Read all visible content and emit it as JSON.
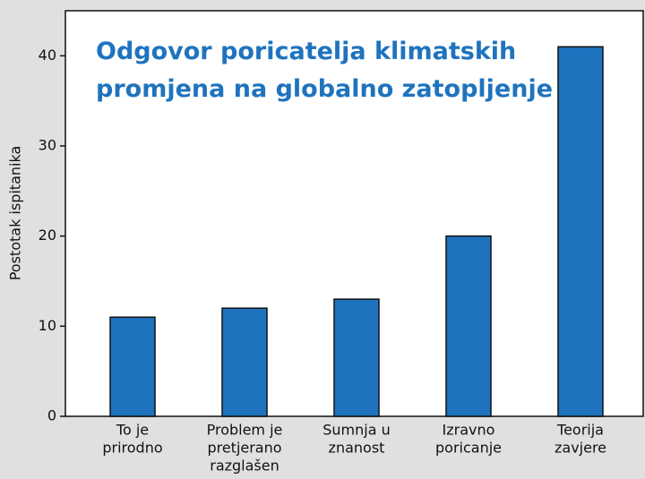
{
  "chart_data": {
    "type": "bar",
    "title": [
      "Odgovor poricatelja klimatskih",
      "promjena na globalno zatopljenje"
    ],
    "y_label": "Postotak ispitanika",
    "categories": [
      [
        "To je",
        "prirodno"
      ],
      [
        "Problem je",
        "pretjerano",
        "razglašen"
      ],
      [
        "Sumnja u",
        "znanost"
      ],
      [
        "Izravno",
        "poricanje"
      ],
      [
        "Teorija",
        "zavjere"
      ]
    ],
    "values": [
      11,
      12,
      13,
      20,
      41
    ],
    "color": "#1f73be",
    "ylim": [
      0,
      45
    ],
    "yticks": [
      0,
      10,
      20,
      30,
      40
    ],
    "grid": false
  }
}
